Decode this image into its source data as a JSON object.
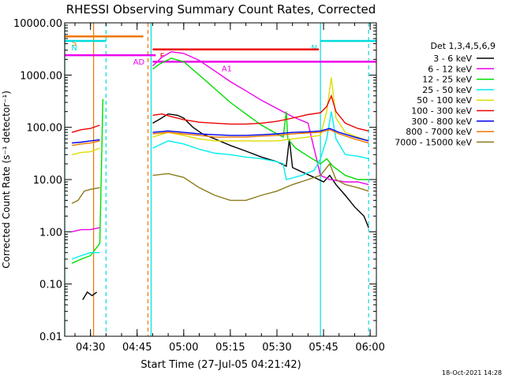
{
  "chart_data": {
    "type": "line",
    "title": "RHESSI Observing Summary Count Rates, Corrected",
    "xlabel": "Start Time (27-Jul-05 04:21:42)",
    "ylabel": "Corrected Count Rate (s⁻¹ detector⁻¹)",
    "x_unit": "UT time (HH:MM)",
    "xlim": [
      "04:21:42",
      "06:02:00"
    ],
    "x_ticks": [
      "04:30",
      "04:45",
      "05:00",
      "05:15",
      "05:30",
      "05:45",
      "06:00"
    ],
    "y_scale": "log",
    "ylim": [
      0.01,
      10000
    ],
    "y_ticks": [
      "0.01",
      "0.10",
      "1.00",
      "10.00",
      "100.00",
      "1000.00",
      "10000.00"
    ],
    "grid": false,
    "legend_title": "Det 1,3,4,5,6,9",
    "legend_position": "right",
    "footer": "18-Oct-2021 14:28",
    "segments": [
      {
        "label": "S",
        "color": "#ee7700",
        "start": "04:21:42",
        "end": "04:47:00",
        "y": 5500
      },
      {
        "label": "N",
        "color": "#00dddd",
        "start": "04:21:42",
        "end": "04:35:00",
        "y": 4500
      },
      {
        "label": "N",
        "color": "#00dddd",
        "start": "05:44:00",
        "end": "06:02:00",
        "y": 4500
      },
      {
        "label": "F",
        "color": "#ee0000",
        "start": "04:50:00",
        "end": "05:43:30",
        "y": 3100
      },
      {
        "label": "AD",
        "color": "#ee00ee",
        "start": "04:21:42",
        "end": "04:51:00",
        "y": 2400
      },
      {
        "label": "A1",
        "color": "#ee00ee",
        "start": "04:50:00",
        "end": "06:02:00",
        "y": 1800
      }
    ],
    "vertical_lines": [
      {
        "time": "04:21:42",
        "color": "#00dddd",
        "style": "solid"
      },
      {
        "time": "04:31:00",
        "color": "#ee7700",
        "style": "solid"
      },
      {
        "time": "04:35:00",
        "color": "#00dddd",
        "style": "dashed"
      },
      {
        "time": "04:48:30",
        "color": "#ee7700",
        "style": "dashed"
      },
      {
        "time": "04:49:30",
        "color": "#00dddd",
        "style": "solid"
      },
      {
        "time": "05:44:00",
        "color": "#00dddd",
        "style": "solid"
      },
      {
        "time": "05:59:30",
        "color": "#00dddd",
        "style": "dashed"
      }
    ],
    "series": [
      {
        "name": "3 - 6 keV",
        "color": "#000000",
        "points": [
          [
            "04:27:30",
            0.05
          ],
          [
            "04:29:00",
            0.07
          ],
          [
            "04:30:30",
            0.06
          ],
          [
            "04:32:00",
            0.07
          ],
          [
            "04:50:00",
            120
          ],
          [
            "04:52:00",
            140
          ],
          [
            "04:55:00",
            180
          ],
          [
            "04:58:00",
            170
          ],
          [
            "05:00:00",
            150
          ],
          [
            "05:03:00",
            100
          ],
          [
            "05:06:00",
            75
          ],
          [
            "05:10:00",
            60
          ],
          [
            "05:15:00",
            45
          ],
          [
            "05:20:00",
            35
          ],
          [
            "05:25:00",
            27
          ],
          [
            "05:30:00",
            22
          ],
          [
            "05:33:00",
            18
          ],
          [
            "05:34:00",
            60
          ],
          [
            "05:35:00",
            17
          ],
          [
            "05:38:00",
            14
          ],
          [
            "05:42:00",
            11
          ],
          [
            "05:45:00",
            9
          ],
          [
            "05:47:00",
            12
          ],
          [
            "05:49:00",
            8
          ],
          [
            "05:52:00",
            5
          ],
          [
            "05:55:00",
            3
          ],
          [
            "05:58:00",
            2
          ],
          [
            "05:59:30",
            1.2
          ]
        ]
      },
      {
        "name": "6 - 12 keV",
        "color": "#ee00ee",
        "points": [
          [
            "04:24:00",
            1.0
          ],
          [
            "04:27:00",
            1.1
          ],
          [
            "04:30:00",
            1.1
          ],
          [
            "04:33:00",
            1.2
          ],
          [
            "04:50:00",
            1500
          ],
          [
            "04:53:00",
            2200
          ],
          [
            "04:56:00",
            2800
          ],
          [
            "05:00:00",
            2600
          ],
          [
            "05:05:00",
            1900
          ],
          [
            "05:10:00",
            1200
          ],
          [
            "05:15:00",
            750
          ],
          [
            "05:20:00",
            500
          ],
          [
            "05:25:00",
            330
          ],
          [
            "05:30:00",
            230
          ],
          [
            "05:35:00",
            160
          ],
          [
            "05:40:00",
            120
          ],
          [
            "05:44:00",
            12
          ],
          [
            "05:47:00",
            10
          ],
          [
            "05:52:00",
            9
          ],
          [
            "05:56:00",
            9
          ],
          [
            "05:59:30",
            8
          ]
        ]
      },
      {
        "name": "12 - 25 keV",
        "color": "#00dd00",
        "points": [
          [
            "04:24:00",
            0.25
          ],
          [
            "04:27:00",
            0.3
          ],
          [
            "04:30:00",
            0.35
          ],
          [
            "04:33:00",
            0.6
          ],
          [
            "04:34:00",
            350
          ],
          [
            "04:50:00",
            1300
          ],
          [
            "04:52:00",
            1600
          ],
          [
            "04:56:00",
            2100
          ],
          [
            "05:00:00",
            1800
          ],
          [
            "05:05:00",
            1000
          ],
          [
            "05:10:00",
            550
          ],
          [
            "05:15:00",
            300
          ],
          [
            "05:20:00",
            180
          ],
          [
            "05:25:00",
            110
          ],
          [
            "05:30:00",
            75
          ],
          [
            "05:32:00",
            65
          ],
          [
            "05:33:00",
            200
          ],
          [
            "05:33:30",
            60
          ],
          [
            "05:36:00",
            40
          ],
          [
            "05:40:00",
            28
          ],
          [
            "05:44:00",
            20
          ],
          [
            "05:46:00",
            25
          ],
          [
            "05:48:00",
            18
          ],
          [
            "05:52:00",
            12
          ],
          [
            "05:56:00",
            10
          ],
          [
            "05:59:30",
            10
          ]
        ]
      },
      {
        "name": "25 - 50 keV",
        "color": "#00eeee",
        "points": [
          [
            "04:24:00",
            0.3
          ],
          [
            "04:27:00",
            0.35
          ],
          [
            "04:30:00",
            0.4
          ],
          [
            "04:33:00",
            0.4
          ],
          [
            "04:50:00",
            40
          ],
          [
            "04:55:00",
            55
          ],
          [
            "05:00:00",
            48
          ],
          [
            "05:05:00",
            38
          ],
          [
            "05:10:00",
            32
          ],
          [
            "05:15:00",
            30
          ],
          [
            "05:20:00",
            27
          ],
          [
            "05:25:00",
            25
          ],
          [
            "05:30:00",
            22
          ],
          [
            "05:32:00",
            20
          ],
          [
            "05:33:00",
            10
          ],
          [
            "05:38:00",
            12
          ],
          [
            "05:42:00",
            15
          ],
          [
            "05:44:00",
            25
          ],
          [
            "05:46:00",
            60
          ],
          [
            "05:47:30",
            200
          ],
          [
            "05:49:00",
            60
          ],
          [
            "05:52:00",
            30
          ],
          [
            "05:56:00",
            28
          ],
          [
            "05:59:30",
            25
          ]
        ]
      },
      {
        "name": "50 - 100 keV",
        "color": "#dddd00",
        "points": [
          [
            "04:24:00",
            30
          ],
          [
            "04:27:00",
            33
          ],
          [
            "04:30:00",
            34
          ],
          [
            "04:33:00",
            40
          ],
          [
            "04:50:00",
            65
          ],
          [
            "04:55:00",
            80
          ],
          [
            "05:00:00",
            70
          ],
          [
            "05:05:00",
            60
          ],
          [
            "05:10:00",
            55
          ],
          [
            "05:15:00",
            55
          ],
          [
            "05:20:00",
            55
          ],
          [
            "05:25:00",
            55
          ],
          [
            "05:30:00",
            55
          ],
          [
            "05:35:00",
            60
          ],
          [
            "05:40:00",
            65
          ],
          [
            "05:44:00",
            70
          ],
          [
            "05:46:00",
            200
          ],
          [
            "05:47:30",
            900
          ],
          [
            "05:49:00",
            150
          ],
          [
            "05:52:00",
            80
          ],
          [
            "05:56:00",
            65
          ],
          [
            "05:59:30",
            55
          ]
        ]
      },
      {
        "name": "100 - 300 keV",
        "color": "#ee0000",
        "points": [
          [
            "04:24:00",
            80
          ],
          [
            "04:27:00",
            90
          ],
          [
            "04:30:00",
            95
          ],
          [
            "04:33:00",
            110
          ],
          [
            "04:50:00",
            170
          ],
          [
            "04:53:00",
            180
          ],
          [
            "04:56:00",
            160
          ],
          [
            "05:00:00",
            140
          ],
          [
            "05:05:00",
            125
          ],
          [
            "05:10:00",
            120
          ],
          [
            "05:15:00",
            115
          ],
          [
            "05:20:00",
            115
          ],
          [
            "05:25:00",
            120
          ],
          [
            "05:30:00",
            130
          ],
          [
            "05:35:00",
            150
          ],
          [
            "05:40:00",
            175
          ],
          [
            "05:44:00",
            190
          ],
          [
            "05:46:00",
            250
          ],
          [
            "05:47:30",
            400
          ],
          [
            "05:49:00",
            200
          ],
          [
            "05:52:00",
            120
          ],
          [
            "05:56:00",
            95
          ],
          [
            "05:59:30",
            85
          ]
        ]
      },
      {
        "name": "300 - 800 keV",
        "color": "#0000ee",
        "points": [
          [
            "04:24:00",
            50
          ],
          [
            "04:27:00",
            52
          ],
          [
            "04:30:00",
            55
          ],
          [
            "04:33:00",
            58
          ],
          [
            "04:50:00",
            80
          ],
          [
            "04:55:00",
            85
          ],
          [
            "05:00:00",
            80
          ],
          [
            "05:05:00",
            75
          ],
          [
            "05:10:00",
            72
          ],
          [
            "05:15:00",
            70
          ],
          [
            "05:20:00",
            70
          ],
          [
            "05:25:00",
            72
          ],
          [
            "05:30:00",
            75
          ],
          [
            "05:35:00",
            80
          ],
          [
            "05:40:00",
            82
          ],
          [
            "05:44:00",
            85
          ],
          [
            "05:47:00",
            95
          ],
          [
            "05:50:00",
            80
          ],
          [
            "05:55:00",
            65
          ],
          [
            "05:59:30",
            55
          ]
        ]
      },
      {
        "name": "800 - 7000 keV",
        "color": "#ee7700",
        "points": [
          [
            "04:24:00",
            45
          ],
          [
            "04:27:00",
            48
          ],
          [
            "04:30:00",
            50
          ],
          [
            "04:33:00",
            55
          ],
          [
            "04:50:00",
            75
          ],
          [
            "04:55:00",
            80
          ],
          [
            "05:00:00",
            75
          ],
          [
            "05:05:00",
            70
          ],
          [
            "05:10:00",
            65
          ],
          [
            "05:15:00",
            65
          ],
          [
            "05:20:00",
            65
          ],
          [
            "05:25:00",
            68
          ],
          [
            "05:30:00",
            70
          ],
          [
            "05:35:00",
            75
          ],
          [
            "05:40:00",
            78
          ],
          [
            "05:44:00",
            80
          ],
          [
            "05:47:00",
            90
          ],
          [
            "05:50:00",
            75
          ],
          [
            "05:55:00",
            60
          ],
          [
            "05:59:30",
            50
          ]
        ]
      },
      {
        "name": "7000 - 15000 keV",
        "color": "#8b7a1a",
        "points": [
          [
            "04:24:00",
            3.5
          ],
          [
            "04:26:00",
            4
          ],
          [
            "04:28:00",
            6
          ],
          [
            "04:30:00",
            6.5
          ],
          [
            "04:33:00",
            7
          ],
          [
            "04:50:00",
            12
          ],
          [
            "04:55:00",
            13
          ],
          [
            "05:00:00",
            11
          ],
          [
            "05:05:00",
            7
          ],
          [
            "05:10:00",
            5
          ],
          [
            "05:15:00",
            4
          ],
          [
            "05:20:00",
            4
          ],
          [
            "05:25:00",
            5
          ],
          [
            "05:30:00",
            6
          ],
          [
            "05:35:00",
            8
          ],
          [
            "05:40:00",
            10
          ],
          [
            "05:44:00",
            12
          ],
          [
            "05:47:00",
            20
          ],
          [
            "05:49:00",
            10
          ],
          [
            "05:52:00",
            8
          ],
          [
            "05:56:00",
            7
          ],
          [
            "05:59:30",
            6
          ]
        ]
      }
    ]
  }
}
